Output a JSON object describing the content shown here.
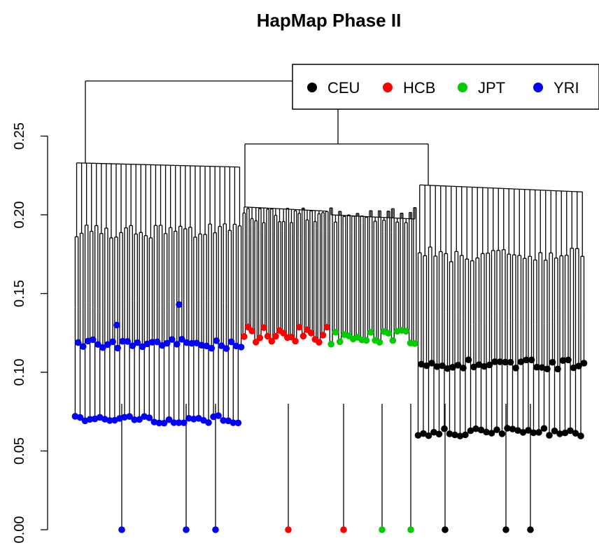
{
  "chart_data": {
    "type": "dendrogram",
    "title": "HapMap Phase II",
    "xlabel": "",
    "ylabel": "",
    "ylim": [
      0,
      0.27
    ],
    "yticks": [
      0.0,
      0.05,
      0.1,
      0.15,
      0.2,
      0.25
    ],
    "ytick_labels": [
      "0.00",
      "0.05",
      "0.10",
      "0.15",
      "0.20",
      "0.25"
    ],
    "legend": {
      "position": "top-right",
      "entries": [
        {
          "label": "CEU",
          "color": "#000000"
        },
        {
          "label": "HCB",
          "color": "#ff0000"
        },
        {
          "label": "JPT",
          "color": "#00cc00"
        },
        {
          "label": "YRI",
          "color": "#0000ff"
        }
      ]
    },
    "root_height": 0.285,
    "merge_heights": {
      "root": 0.285,
      "asian_ceu": 0.245,
      "yri_cluster": 0.233,
      "asian_cluster": 0.205,
      "ceu_cluster": 0.219
    },
    "clusters": [
      {
        "name": "YRI",
        "color": "#0000ff",
        "top_height": 0.233,
        "upper_level": 0.19,
        "mid_level": 0.143,
        "leaf_upper": 0.118,
        "leaf_lower": 0.07,
        "n_leaves": 34,
        "outlier_leaves_at_zero": 3,
        "outlier_points_above": [
          0.13,
          0.143
        ]
      },
      {
        "name": "HCB",
        "color": "#ff0000",
        "top_height": 0.205,
        "upper_level": 0.2,
        "mid_level": 0.19,
        "leaf_level": 0.124,
        "n_leaves": 22,
        "outlier_leaves_at_zero": 2
      },
      {
        "name": "JPT",
        "color": "#00cc00",
        "top_height": 0.2,
        "upper_level": 0.2,
        "mid_level": 0.19,
        "leaf_level": 0.122,
        "n_leaves": 20,
        "outlier_leaves_at_zero": 2
      },
      {
        "name": "CEU",
        "color": "#000000",
        "top_height": 0.219,
        "upper_level": 0.175,
        "mid_level": 0.135,
        "leaf_upper": 0.105,
        "leaf_lower": 0.062,
        "n_leaves": 32,
        "outlier_leaves_at_zero": 3
      }
    ]
  }
}
